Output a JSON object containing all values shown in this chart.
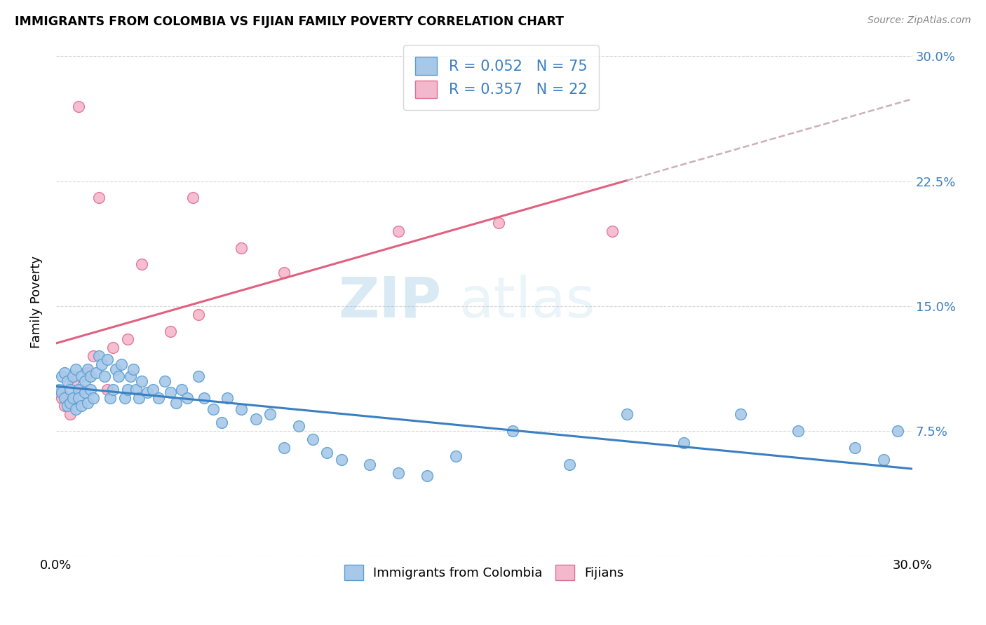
{
  "title": "IMMIGRANTS FROM COLOMBIA VS FIJIAN FAMILY POVERTY CORRELATION CHART",
  "source": "Source: ZipAtlas.com",
  "ylabel": "Family Poverty",
  "ytick_vals": [
    0.0,
    0.075,
    0.15,
    0.225,
    0.3
  ],
  "ytick_labels": [
    "",
    "7.5%",
    "15.0%",
    "22.5%",
    "30.0%"
  ],
  "xlim": [
    0.0,
    0.3
  ],
  "ylim": [
    0.0,
    0.305
  ],
  "colombia_color": "#a8c8e8",
  "fijian_color": "#f4b8cc",
  "colombia_edge_color": "#5a9fd4",
  "fijian_edge_color": "#e07090",
  "colombia_line_color": "#3a7fc1",
  "fijian_line_color": "#e06080",
  "fijian_dash_color": "#ccb0b8",
  "colombia_R": 0.052,
  "colombia_N": 75,
  "fijian_R": 0.357,
  "fijian_N": 22,
  "legend_text_color": "#3a7fc1",
  "watermark_color": "#c8ddf0",
  "colombia_x": [
    0.001,
    0.002,
    0.002,
    0.003,
    0.003,
    0.004,
    0.004,
    0.005,
    0.005,
    0.006,
    0.006,
    0.007,
    0.007,
    0.008,
    0.008,
    0.009,
    0.009,
    0.01,
    0.01,
    0.011,
    0.011,
    0.012,
    0.012,
    0.013,
    0.014,
    0.015,
    0.016,
    0.017,
    0.018,
    0.019,
    0.02,
    0.021,
    0.022,
    0.023,
    0.024,
    0.025,
    0.026,
    0.027,
    0.028,
    0.029,
    0.03,
    0.032,
    0.034,
    0.036,
    0.038,
    0.04,
    0.042,
    0.044,
    0.046,
    0.05,
    0.052,
    0.055,
    0.058,
    0.06,
    0.065,
    0.07,
    0.075,
    0.08,
    0.085,
    0.09,
    0.095,
    0.1,
    0.11,
    0.12,
    0.13,
    0.14,
    0.16,
    0.18,
    0.2,
    0.22,
    0.24,
    0.26,
    0.28,
    0.29,
    0.295
  ],
  "colombia_y": [
    0.1,
    0.098,
    0.108,
    0.095,
    0.11,
    0.09,
    0.105,
    0.092,
    0.1,
    0.108,
    0.095,
    0.112,
    0.088,
    0.1,
    0.095,
    0.108,
    0.09,
    0.105,
    0.098,
    0.112,
    0.092,
    0.1,
    0.108,
    0.095,
    0.11,
    0.12,
    0.115,
    0.108,
    0.118,
    0.095,
    0.1,
    0.112,
    0.108,
    0.115,
    0.095,
    0.1,
    0.108,
    0.112,
    0.1,
    0.095,
    0.105,
    0.098,
    0.1,
    0.095,
    0.105,
    0.098,
    0.092,
    0.1,
    0.095,
    0.108,
    0.095,
    0.088,
    0.08,
    0.095,
    0.088,
    0.082,
    0.085,
    0.065,
    0.078,
    0.07,
    0.062,
    0.058,
    0.055,
    0.05,
    0.048,
    0.06,
    0.075,
    0.055,
    0.085,
    0.068,
    0.085,
    0.075,
    0.065,
    0.058,
    0.075
  ],
  "fijian_x": [
    0.001,
    0.002,
    0.003,
    0.005,
    0.006,
    0.008,
    0.009,
    0.011,
    0.013,
    0.015,
    0.018,
    0.02,
    0.025,
    0.03,
    0.04,
    0.05,
    0.065,
    0.08,
    0.12,
    0.155,
    0.195,
    0.048
  ],
  "fijian_y": [
    0.098,
    0.095,
    0.09,
    0.085,
    0.105,
    0.27,
    0.1,
    0.11,
    0.12,
    0.215,
    0.1,
    0.125,
    0.13,
    0.175,
    0.135,
    0.145,
    0.185,
    0.17,
    0.195,
    0.2,
    0.195,
    0.215
  ]
}
